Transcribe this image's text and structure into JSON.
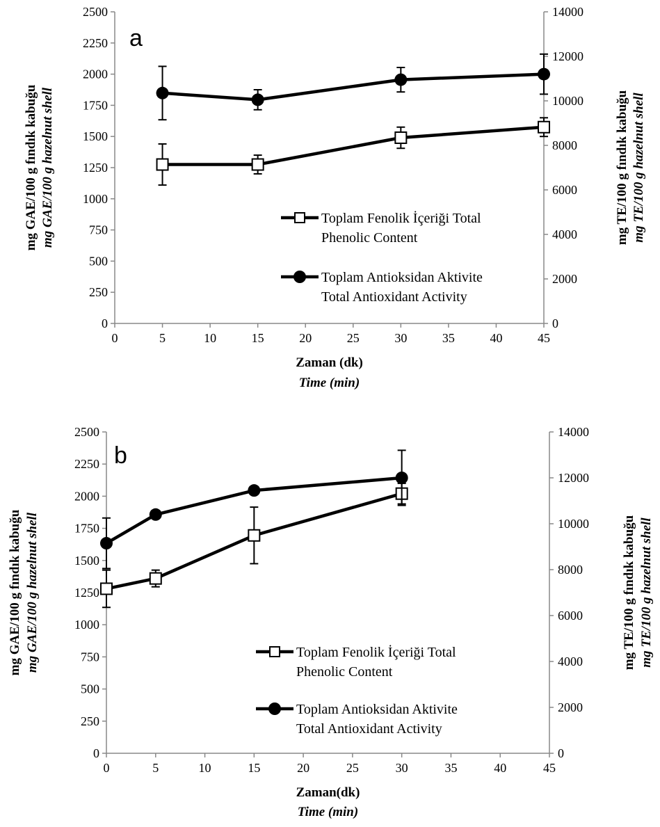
{
  "chart_data": [
    {
      "panel": "a",
      "type": "line",
      "xlabel": "Zaman (dk)",
      "xlabel_en": "Time (min)",
      "ylabel_left": "mg GAE/100 g fındık kabuğu",
      "ylabel_left_en": "mg GAE/100 g hazelnut shell",
      "ylabel_right": "mg TE/100 g fındık kabuğu",
      "ylabel_right_en": "mg TE/100 g hazelnut shell",
      "xlim": [
        0,
        45
      ],
      "xticks": [
        0,
        5,
        10,
        15,
        20,
        25,
        30,
        35,
        40,
        45
      ],
      "ylim_left": [
        0,
        2500
      ],
      "yticks_left": [
        0,
        250,
        500,
        750,
        1000,
        1250,
        1500,
        1750,
        2000,
        2250,
        2500
      ],
      "ylim_right": [
        0,
        14000
      ],
      "yticks_right": [
        0,
        2000,
        4000,
        6000,
        8000,
        10000,
        12000,
        14000
      ],
      "legend_position": "lower-right",
      "grid": false,
      "series": [
        {
          "name": "Toplam Fenolik İçeriği Total",
          "name_line2": "Phenolic Content",
          "axis": "left",
          "marker": "open-square",
          "x": [
            5,
            15,
            30,
            45
          ],
          "y": [
            1275,
            1275,
            1490,
            1575
          ],
          "err": [
            165,
            75,
            85,
            75
          ]
        },
        {
          "name": "Toplam Antioksidan Aktivite",
          "name_line2": "Total Antioxidant Activity",
          "axis": "right",
          "marker": "filled-circle",
          "x": [
            5,
            15,
            30,
            45
          ],
          "y": [
            10350,
            10050,
            10950,
            11200
          ],
          "err": [
            1200,
            450,
            550,
            900
          ]
        }
      ]
    },
    {
      "panel": "b",
      "type": "line",
      "xlabel": "Zaman(dk)",
      "xlabel_en": "Time (min)",
      "ylabel_left": "mg GAE/100 g fındık kabuğu",
      "ylabel_left_en": "mg GAE/100 g hazelnut shell",
      "ylabel_right": "mg TE/100 g fındık kabuğu",
      "ylabel_right_en": "mg TE/100 g hazelnut shell",
      "xlim": [
        0,
        45
      ],
      "xticks": [
        0,
        5,
        10,
        15,
        20,
        25,
        30,
        35,
        40,
        45
      ],
      "ylim_left": [
        0,
        2500
      ],
      "yticks_left": [
        0,
        250,
        500,
        750,
        1000,
        1250,
        1500,
        1750,
        2000,
        2250,
        2500
      ],
      "ylim_right": [
        0,
        14000
      ],
      "yticks_right": [
        0,
        2000,
        4000,
        6000,
        8000,
        10000,
        12000,
        14000
      ],
      "legend_position": "lower-right",
      "grid": false,
      "series": [
        {
          "name": "Toplam Fenolik İçeriği Total",
          "name_line2": "Phenolic Content",
          "axis": "left",
          "marker": "open-square",
          "x": [
            0,
            5,
            15,
            30
          ],
          "y": [
            1280,
            1360,
            1695,
            2020
          ],
          "err": [
            145,
            65,
            220,
            80
          ]
        },
        {
          "name": "Toplam Antioksidan Aktivite",
          "name_line2": "Total Antioxidant Activity",
          "axis": "right",
          "marker": "filled-circle",
          "x": [
            0,
            5,
            15,
            30
          ],
          "y": [
            9150,
            10400,
            11450,
            12000
          ],
          "err": [
            1100,
            0,
            0,
            1200
          ]
        }
      ]
    }
  ]
}
